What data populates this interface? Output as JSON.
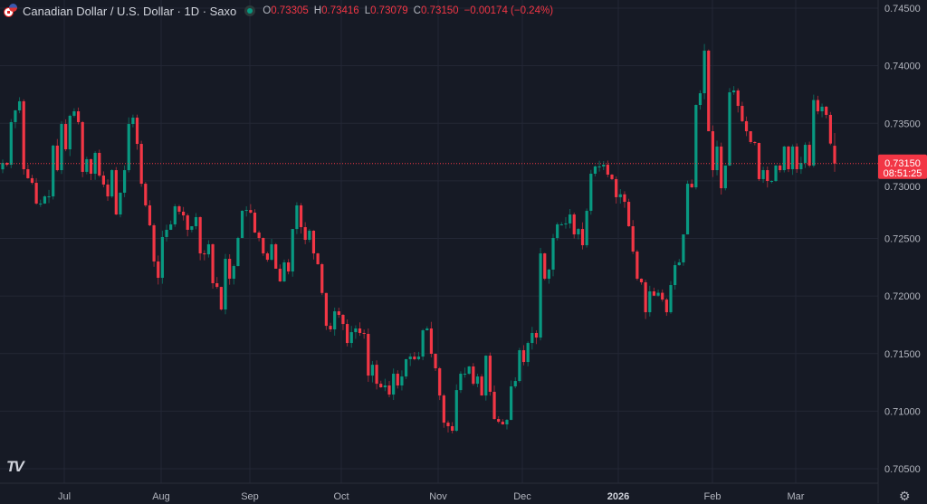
{
  "header": {
    "title": "Canadian Dollar / U.S. Dollar · 1D · Saxo",
    "o_label": "O",
    "o_value": "0.73305",
    "h_label": "H",
    "h_value": "0.73416",
    "l_label": "L",
    "l_value": "0.73079",
    "c_label": "C",
    "c_value": "0.73150",
    "change": "−0.00174 (−0.24%)",
    "status_icon": "market-open-dot"
  },
  "price_label": {
    "price": "0.73150",
    "countdown": "08:51:25"
  },
  "logo": "TV",
  "settings_icon": "gear-icon",
  "colors": {
    "background": "#161a25",
    "up": "#089981",
    "down": "#f23645",
    "grid": "#232735",
    "text": "#b2b5be"
  },
  "chart_data": {
    "type": "candlestick",
    "symbol": "Canadian Dollar / U.S. Dollar",
    "interval": "1D",
    "ylim": [
      0.7035,
      0.7465
    ],
    "y_ticks": [
      "0.74500",
      "0.74000",
      "0.73500",
      "0.73000",
      "0.72500",
      "0.72000",
      "0.71500",
      "0.71000",
      "0.70500"
    ],
    "x_ticks": [
      "Jul",
      "Aug",
      "Sep",
      "Oct",
      "Nov",
      "Dec",
      "2026",
      "Feb",
      "Mar"
    ],
    "grid": true,
    "first_open": 0.731,
    "closes": [
      0.73156,
      0.7314,
      0.7351,
      0.73612,
      0.73691,
      0.73101,
      0.73023,
      0.72983,
      0.72803,
      0.72803,
      0.72865,
      0.72865,
      0.73306,
      0.73093,
      0.73494,
      0.73274,
      0.73565,
      0.73604,
      0.7351,
      0.73078,
      0.73188,
      0.73062,
      0.73243,
      0.73046,
      0.72968,
      0.72865,
      0.73093,
      0.72708,
      0.72897,
      0.73093,
      0.73494,
      0.73549,
      0.73321,
      0.72975,
      0.72787,
      0.72614,
      0.723,
      0.72158,
      0.72512,
      0.72575,
      0.72622,
      0.72779,
      0.72732,
      0.727,
      0.72575,
      0.72606,
      0.72685,
      0.7237,
      0.72362,
      0.72449,
      0.72111,
      0.72079,
      0.71883,
      0.72323,
      0.7215,
      0.7226,
      0.72504,
      0.7274,
      0.72747,
      0.72724,
      0.72551,
      0.72504,
      0.7237,
      0.72315,
      0.72449,
      0.72237,
      0.72127,
      0.72292,
      0.72213,
      0.72582,
      0.72787,
      0.72598,
      0.72488,
      0.72567,
      0.7237,
      0.72276,
      0.72026,
      0.71741,
      0.7171,
      0.71867,
      0.71836,
      0.71757,
      0.71592,
      0.71686,
      0.71718,
      0.71679,
      0.71671,
      0.71309,
      0.71403,
      0.71238,
      0.71207,
      0.71223,
      0.71144,
      0.71325,
      0.71223,
      0.71301,
      0.71451,
      0.71474,
      0.71451,
      0.71474,
      0.71702,
      0.71718,
      0.71498,
      0.71372,
      0.71136,
      0.709,
      0.70869,
      0.7083,
      0.71183,
      0.71325,
      0.71325,
      0.71388,
      0.71238,
      0.71301,
      0.71136,
      0.71482,
      0.71168,
      0.70932,
      0.70908,
      0.70885,
      0.70924,
      0.71215,
      0.71262,
      0.71529,
      0.71427,
      0.71592,
      0.71679,
      0.71639,
      0.7237,
      0.7215,
      0.72229,
      0.72504,
      0.72622,
      0.72622,
      0.7263,
      0.72708,
      0.72535,
      0.72582,
      0.72441,
      0.7274,
      0.73062,
      0.73125,
      0.73125,
      0.7314,
      0.73054,
      0.73015,
      0.72858,
      0.72883,
      0.72818,
      0.72606,
      0.72386,
      0.7215,
      0.72119,
      0.71859,
      0.7204,
      0.72003,
      0.72028,
      0.71969,
      0.71859,
      0.72095,
      0.72268,
      0.72292,
      0.72535,
      0.72975,
      0.72944,
      0.73659,
      0.73761,
      0.74131,
      0.73431,
      0.73093,
      0.73298,
      0.72936,
      0.73133,
      0.73769,
      0.73785,
      0.73651,
      0.73518,
      0.73431,
      0.73337,
      0.73329,
      0.73015,
      0.73093,
      0.72999,
      0.72999,
      0.73133,
      0.73093,
      0.73298,
      0.73101,
      0.73298,
      0.73101,
      0.73156,
      0.73313,
      0.73133,
      0.73702,
      0.73604,
      0.73644,
      0.73573,
      0.73324,
      0.7315
    ],
    "last_candle": {
      "open": 0.73305,
      "high": 0.73416,
      "low": 0.73079,
      "close": 0.7315
    },
    "last_price": 0.7315
  }
}
